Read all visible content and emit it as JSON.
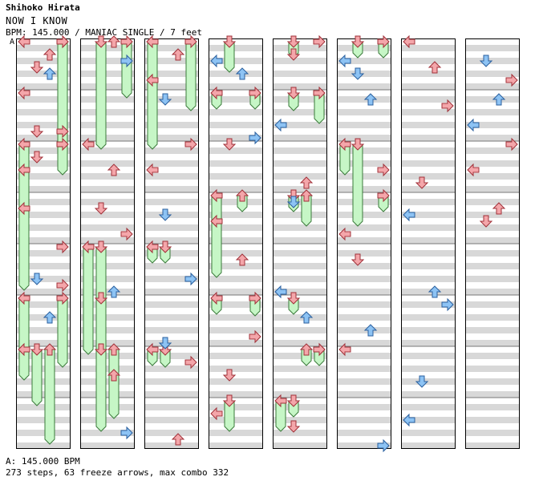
{
  "header": {
    "artist": "Shihoko Hirata",
    "title": "NOW I KNOW",
    "info": "BPM: 145.000 / MANIAC SINGLE / 7 feet"
  },
  "marker_label": "A",
  "footer": {
    "bpm_line": "A: 145.000 BPM",
    "stats_line": "273 steps, 63 freeze arrows, max combo 332"
  },
  "chart_data": {
    "type": "step-chart",
    "lanes": [
      "left",
      "down",
      "up",
      "right"
    ],
    "columns": 8,
    "measures_per_column": 8,
    "rows_per_measure": 16,
    "colors": {
      "quarter_note": "#f4a6aa",
      "eighth_note": "#8dc3f4",
      "freeze_body": "#c6f6c6",
      "stripe": "#d8d8d8",
      "border": "#000000"
    },
    "notes": [
      [
        [
          0,
          0,
          0,
          0
        ],
        [
          0,
          0,
          1,
          8
        ],
        [
          0,
          0,
          2,
          4
        ],
        [
          0,
          0,
          3,
          0
        ],
        [
          0,
          0,
          0,
          16
        ],
        [
          0,
          0,
          2,
          10
        ],
        [
          0,
          1,
          1,
          12
        ],
        [
          0,
          1,
          3,
          12
        ],
        [
          0,
          2,
          0,
          8
        ],
        [
          0,
          2,
          1,
          4
        ],
        [
          0,
          2,
          3,
          0
        ],
        [
          0,
          3,
          0,
          4
        ],
        [
          0,
          4,
          3,
          0
        ],
        [
          0,
          4,
          1,
          10
        ],
        [
          0,
          4,
          3,
          12
        ],
        [
          0,
          5,
          2,
          6
        ],
        [
          0,
          5,
          0,
          16
        ]
      ],
      [
        [
          1,
          0,
          2,
          0
        ],
        [
          1,
          0,
          3,
          6
        ],
        [
          1,
          2,
          0,
          0
        ],
        [
          1,
          2,
          2,
          8
        ],
        [
          1,
          3,
          1,
          4
        ],
        [
          1,
          3,
          3,
          12
        ],
        [
          1,
          4,
          2,
          14
        ],
        [
          1,
          5,
          1,
          0
        ],
        [
          1,
          6,
          2,
          8
        ],
        [
          1,
          7,
          3,
          10
        ]
      ],
      [
        [
          2,
          0,
          0,
          12
        ],
        [
          2,
          0,
          2,
          4
        ],
        [
          2,
          1,
          1,
          2
        ],
        [
          2,
          2,
          0,
          8
        ],
        [
          2,
          2,
          3,
          0
        ],
        [
          2,
          3,
          1,
          6
        ],
        [
          2,
          4,
          3,
          10
        ],
        [
          2,
          5,
          1,
          14
        ],
        [
          2,
          6,
          3,
          4
        ],
        [
          2,
          7,
          2,
          12
        ]
      ],
      [
        [
          3,
          0,
          0,
          6
        ],
        [
          3,
          0,
          2,
          10
        ],
        [
          3,
          1,
          3,
          14
        ],
        [
          3,
          2,
          1,
          0
        ],
        [
          3,
          3,
          0,
          8
        ],
        [
          3,
          4,
          2,
          4
        ],
        [
          3,
          5,
          3,
          12
        ],
        [
          3,
          6,
          1,
          8
        ],
        [
          3,
          7,
          0,
          4
        ]
      ],
      [
        [
          4,
          0,
          1,
          4
        ],
        [
          4,
          0,
          3,
          0
        ],
        [
          4,
          1,
          0,
          10
        ],
        [
          4,
          2,
          2,
          12
        ],
        [
          4,
          3,
          1,
          2
        ],
        [
          4,
          4,
          0,
          14
        ],
        [
          4,
          5,
          2,
          6
        ],
        [
          4,
          6,
          3,
          0
        ],
        [
          4,
          7,
          1,
          8
        ]
      ],
      [
        [
          5,
          0,
          0,
          6
        ],
        [
          5,
          0,
          1,
          10
        ],
        [
          5,
          1,
          2,
          2
        ],
        [
          5,
          2,
          3,
          8
        ],
        [
          5,
          3,
          0,
          12
        ],
        [
          5,
          4,
          1,
          4
        ],
        [
          5,
          5,
          2,
          10
        ],
        [
          5,
          6,
          0,
          0
        ],
        [
          5,
          7,
          3,
          14
        ]
      ],
      [
        [
          6,
          0,
          0,
          0
        ],
        [
          6,
          0,
          2,
          8
        ],
        [
          6,
          1,
          3,
          4
        ],
        [
          6,
          2,
          1,
          12
        ],
        [
          6,
          3,
          0,
          6
        ],
        [
          6,
          4,
          2,
          14
        ],
        [
          6,
          5,
          3,
          2
        ],
        [
          6,
          6,
          1,
          10
        ],
        [
          6,
          7,
          0,
          6
        ]
      ],
      [
        [
          7,
          0,
          1,
          6
        ],
        [
          7,
          0,
          3,
          12
        ],
        [
          7,
          1,
          0,
          10
        ],
        [
          7,
          1,
          2,
          2
        ],
        [
          7,
          2,
          0,
          8
        ],
        [
          7,
          2,
          3,
          0
        ],
        [
          7,
          3,
          1,
          8
        ],
        [
          7,
          3,
          2,
          4
        ]
      ]
    ],
    "freezes": [
      [
        0,
        2,
        0,
        4,
        2,
        12
      ],
      [
        0,
        0,
        3,
        2,
        0,
        8
      ],
      [
        0,
        5,
        0,
        6,
        0,
        8
      ],
      [
        0,
        5,
        3,
        6,
        1,
        4
      ],
      [
        0,
        6,
        1,
        7,
        4,
        0
      ],
      [
        0,
        6,
        2,
        7,
        6,
        12
      ],
      [
        1,
        0,
        1,
        2,
        0,
        0
      ],
      [
        1,
        0,
        3,
        1,
        0,
        0
      ],
      [
        1,
        4,
        0,
        6,
        0,
        0
      ],
      [
        1,
        4,
        1,
        6,
        1,
        4
      ],
      [
        1,
        6,
        1,
        7,
        6,
        8
      ],
      [
        1,
        6,
        2,
        7,
        1,
        4
      ],
      [
        2,
        0,
        0,
        2,
        0,
        0
      ],
      [
        2,
        0,
        3,
        1,
        0,
        4
      ],
      [
        2,
        4,
        0,
        4,
        4,
        0
      ],
      [
        2,
        4,
        1,
        4,
        4,
        0
      ],
      [
        2,
        6,
        0,
        6,
        3,
        0
      ],
      [
        2,
        6,
        1,
        6,
        3,
        4
      ],
      [
        3,
        0,
        1,
        0,
        2,
        8
      ],
      [
        3,
        1,
        0,
        1,
        2,
        0
      ],
      [
        3,
        1,
        3,
        1,
        2,
        0
      ],
      [
        3,
        3,
        0,
        4,
        0,
        8
      ],
      [
        3,
        3,
        2,
        3,
        4,
        0
      ],
      [
        3,
        5,
        0,
        5,
        2,
        0
      ],
      [
        3,
        5,
        3,
        5,
        2,
        4
      ],
      [
        3,
        7,
        1,
        7,
        2,
        8
      ],
      [
        4,
        0,
        1,
        0,
        2,
        0
      ],
      [
        4,
        1,
        1,
        1,
        2,
        4
      ],
      [
        4,
        1,
        3,
        1,
        2,
        8
      ],
      [
        4,
        3,
        1,
        3,
        2,
        0
      ],
      [
        4,
        3,
        2,
        3,
        2,
        8
      ],
      [
        4,
        5,
        1,
        5,
        2,
        0
      ],
      [
        4,
        6,
        2,
        6,
        2,
        0
      ],
      [
        4,
        6,
        3,
        6,
        2,
        0
      ],
      [
        4,
        7,
        0,
        7,
        2,
        8
      ],
      [
        4,
        7,
        1,
        7,
        2,
        0
      ],
      [
        5,
        0,
        1,
        0,
        2,
        0
      ],
      [
        5,
        0,
        3,
        0,
        2,
        0
      ],
      [
        5,
        2,
        0,
        2,
        2,
        8
      ],
      [
        5,
        2,
        1,
        3,
        1,
        8
      ],
      [
        5,
        3,
        3,
        3,
        2,
        0
      ]
    ]
  }
}
